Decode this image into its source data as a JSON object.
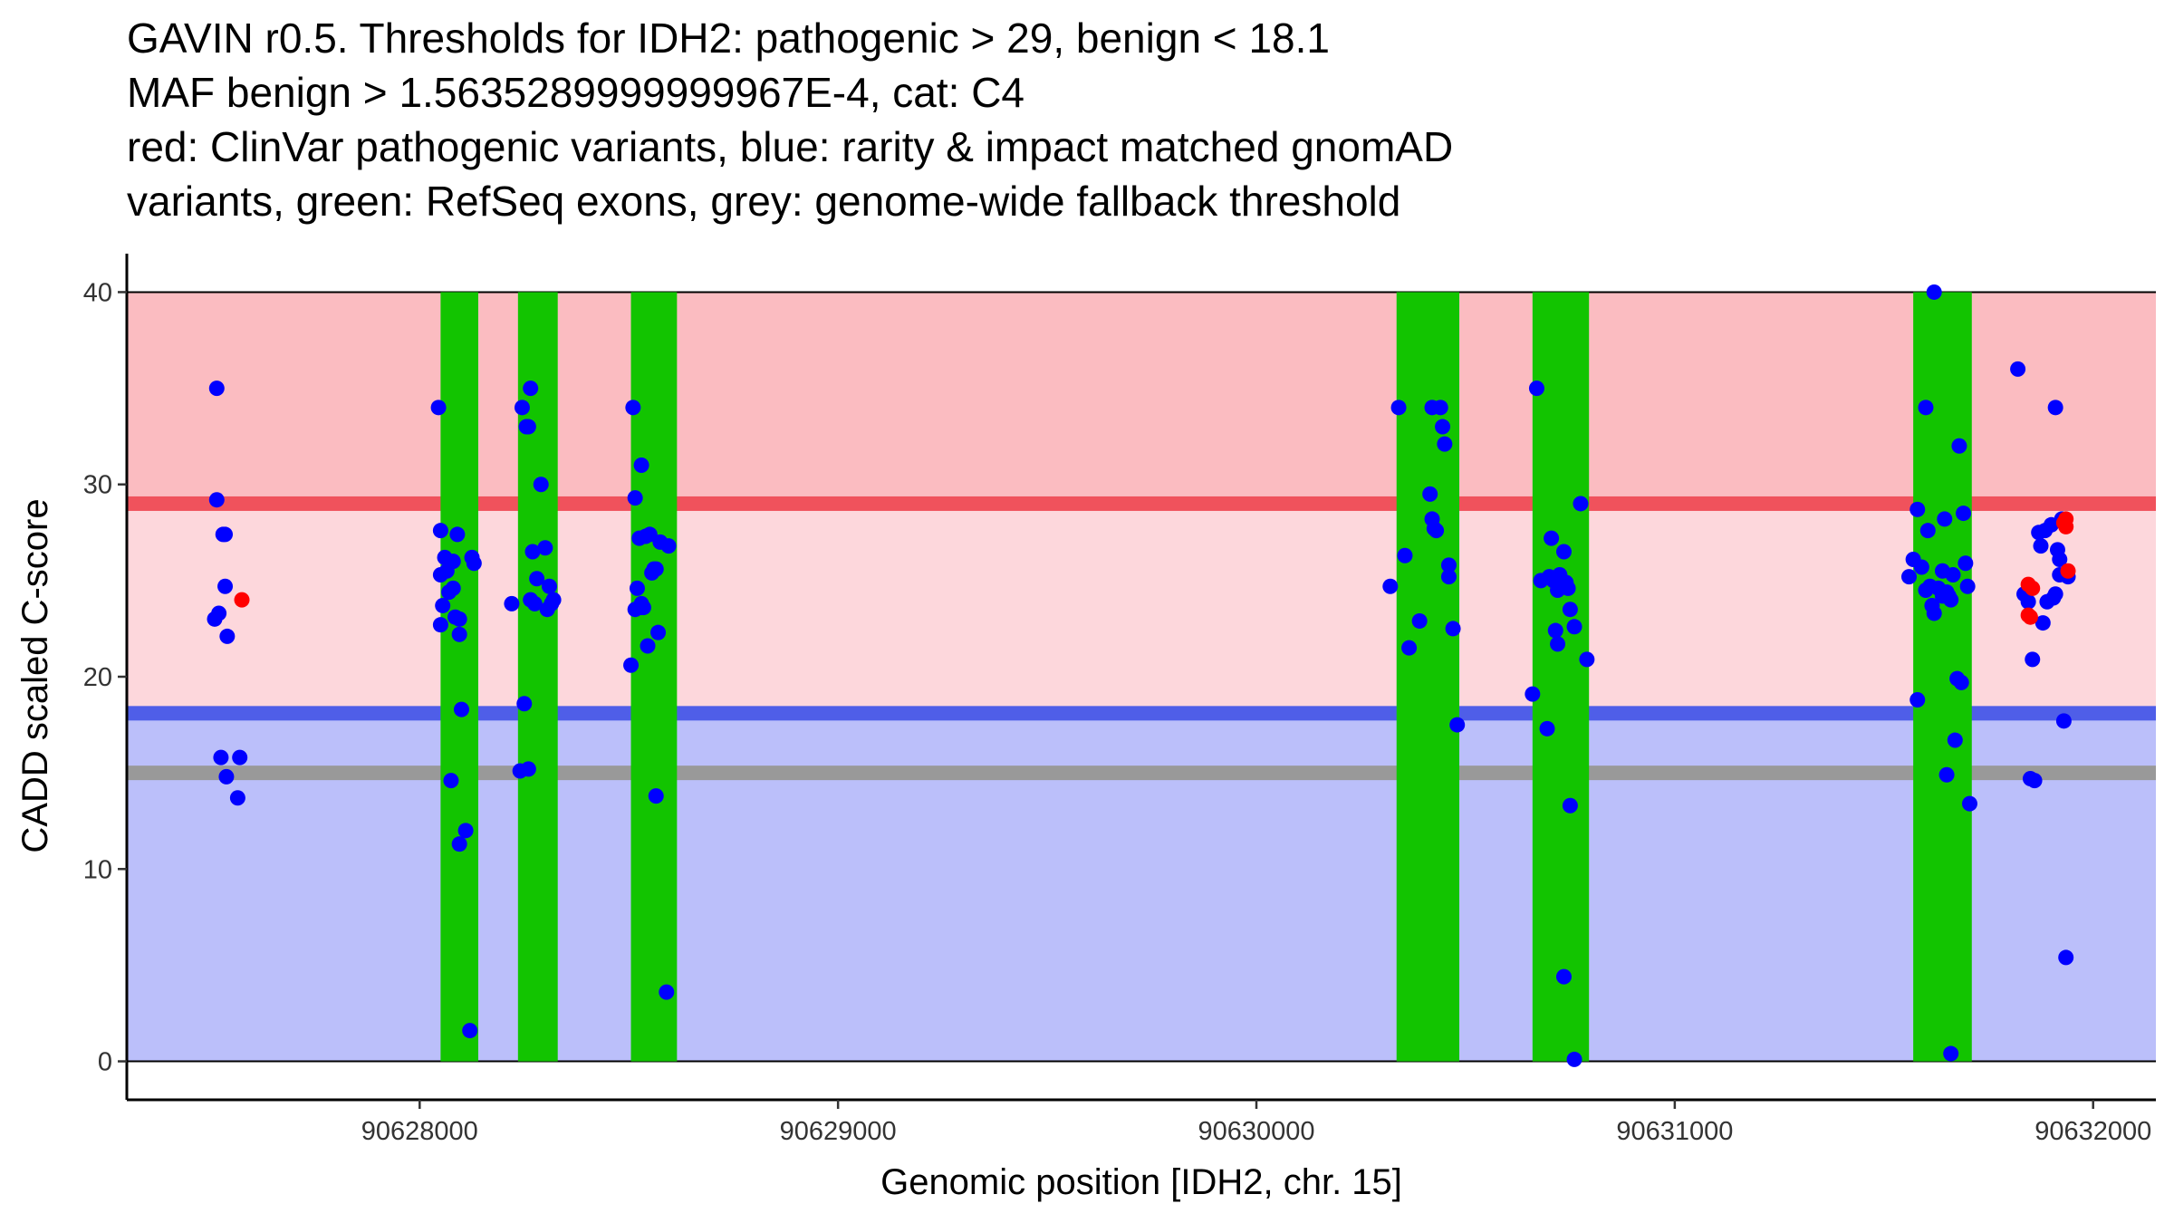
{
  "chart_data": {
    "type": "scatter",
    "title_lines": [
      "GAVIN r0.5. Thresholds for IDH2: pathogenic > 29, benign < 18.1",
      "MAF benign > 1.5635289999999967E-4, cat: C4",
      "red: ClinVar pathogenic variants, blue: rarity & impact matched gnomAD",
      "variants, green: RefSeq exons, grey: genome-wide fallback threshold"
    ],
    "xlabel": "Genomic position [IDH2, chr. 15]",
    "ylabel": "CADD scaled C-score",
    "xlim": [
      90627300,
      90632150
    ],
    "ylim": [
      -2,
      42
    ],
    "xticks": [
      90628000,
      90629000,
      90630000,
      90631000,
      90632000
    ],
    "xtick_labels": [
      "90628000",
      "90629000",
      "90630000",
      "90631000",
      "90632000"
    ],
    "yticks": [
      0,
      10,
      20,
      30,
      40
    ],
    "ytick_labels": [
      "0",
      "10",
      "20",
      "30",
      "40"
    ],
    "thresholds": {
      "pathogenic": 29,
      "benign": 18.1,
      "fallback": 15
    },
    "region_colors": {
      "pathogenic_zone": "#fbbcc1",
      "mid_zone": "#fdd7dc",
      "benign_zone": "#bbbffa"
    },
    "line_colors": {
      "pathogenic": "#f0525c",
      "benign": "#4f5ee8",
      "fallback": "#999999"
    },
    "exon_color": "#12c400",
    "exons": [
      [
        90628050,
        90628140
      ],
      [
        90628235,
        90628330
      ],
      [
        90628505,
        90628615
      ],
      [
        90630335,
        90630485
      ],
      [
        90630660,
        90630795
      ],
      [
        90631570,
        90631710
      ]
    ],
    "series": [
      {
        "name": "gnomAD variants",
        "color": "#0000ff",
        "x": [
          90627515,
          90627515,
          90627520,
          90627510,
          90627530,
          90627535,
          90627535,
          90627540,
          90627538,
          90627525,
          90627565,
          90627570,
          90628045,
          90628050,
          90628060,
          90628050,
          90628055,
          90628070,
          90628080,
          90628065,
          90628090,
          90628095,
          90628085,
          90628100,
          90628075,
          90628110,
          90628095,
          90628120,
          90628130,
          90628050,
          90628080,
          90628125,
          90628095,
          90628220,
          90628245,
          90628260,
          90628255,
          90628265,
          90628270,
          90628280,
          90628265,
          90628275,
          90628290,
          90628300,
          90628310,
          90628305,
          90628315,
          90628320,
          90628250,
          90628240,
          90628260,
          90628510,
          90628515,
          90628525,
          90628520,
          90628530,
          90628530,
          90628540,
          90628550,
          90628560,
          90628570,
          90628545,
          90628555,
          90628565,
          90628575,
          90628590,
          90628505,
          90628515,
          90628535,
          90628595,
          90628565,
          90628530,
          90630320,
          90630340,
          90630355,
          90630365,
          90630390,
          90630415,
          90630420,
          90630425,
          90630430,
          90630440,
          90630445,
          90630450,
          90630460,
          90630470,
          90630480,
          90630460,
          90630420,
          90630660,
          90630670,
          90630680,
          90630695,
          90630700,
          90630705,
          90630715,
          90630720,
          90630725,
          90630735,
          90630740,
          90630745,
          90630750,
          90630710,
          90630720,
          90630760,
          90630775,
          90630750,
          90630790,
          90630735,
          90630760,
          90631580,
          90631590,
          90631600,
          90631605,
          90631610,
          90631615,
          90631620,
          90631630,
          90631640,
          90631645,
          90631650,
          90631655,
          90631660,
          90631665,
          90631670,
          90631675,
          90631680,
          90631685,
          90631690,
          90631695,
          90631700,
          90631705,
          90631580,
          90631600,
          90631620,
          90631650,
          90631560,
          90631570,
          90631640,
          90631660,
          90631820,
          90631835,
          90631845,
          90631850,
          90631860,
          90631870,
          90631880,
          90631885,
          90631890,
          90631900,
          90631905,
          90631910,
          90631915,
          90631920,
          90631925,
          90631930,
          90631935,
          90631940,
          90631855,
          90631875,
          90631910,
          90631920
        ],
        "y": [
          35,
          29.2,
          23.3,
          23,
          27.4,
          27.4,
          24.7,
          22.1,
          14.8,
          15.8,
          13.7,
          15.8,
          34,
          27.6,
          26.2,
          25.3,
          23.7,
          24.4,
          26,
          25.5,
          27.4,
          22.2,
          23.1,
          18.3,
          14.6,
          12,
          11.3,
          1.6,
          25.9,
          22.7,
          24.6,
          26.2,
          23,
          23.8,
          34,
          33,
          33,
          35,
          26.5,
          25.1,
          24,
          23.8,
          30,
          26.7,
          24.7,
          23.5,
          23.8,
          24,
          18.6,
          15.1,
          15.2,
          34,
          29.3,
          27.2,
          24.6,
          23.6,
          31,
          27.3,
          27.4,
          25.6,
          22.3,
          21.6,
          25.4,
          25.6,
          27,
          3.6,
          20.6,
          23.5,
          23.6,
          26.8,
          13.8,
          23.8,
          24.7,
          34,
          26.3,
          21.5,
          22.9,
          29.5,
          28.2,
          27.7,
          27.6,
          34,
          33,
          32.1,
          25.2,
          22.5,
          17.5,
          25.8,
          34,
          19.1,
          35,
          25,
          17.3,
          25.2,
          27.2,
          22.4,
          24.5,
          25.3,
          26.5,
          24.9,
          24.6,
          23.5,
          25,
          21.7,
          22.6,
          29,
          13.3,
          20.9,
          4.4,
          0.1,
          28.7,
          25.7,
          24.5,
          27.6,
          24.7,
          23.7,
          23.3,
          24.6,
          24.2,
          28.2,
          24.4,
          24.2,
          24,
          25.3,
          16.7,
          19.9,
          32,
          19.7,
          28.5,
          25.9,
          24.7,
          13.4,
          18.8,
          34,
          40,
          14.9,
          25.2,
          26.1,
          25.5,
          0.4,
          36,
          24.3,
          23.9,
          14.7,
          14.6,
          27.5,
          22.8,
          27.6,
          23.9,
          27.9,
          24.1,
          34,
          26.6,
          25.3,
          28.2,
          17.7,
          5.4,
          25.2,
          20.9,
          26.8,
          24.3,
          26.1
        ]
      },
      {
        "name": "ClinVar pathogenic variants",
        "color": "#ff0000",
        "x": [
          90627575,
          90631845,
          90631855,
          90631850,
          90631845,
          90631935,
          90631930,
          90631935,
          90631940
        ],
        "y": [
          24,
          24.8,
          24.6,
          23.1,
          23.2,
          28.2,
          28,
          27.8,
          25.5
        ]
      }
    ]
  }
}
